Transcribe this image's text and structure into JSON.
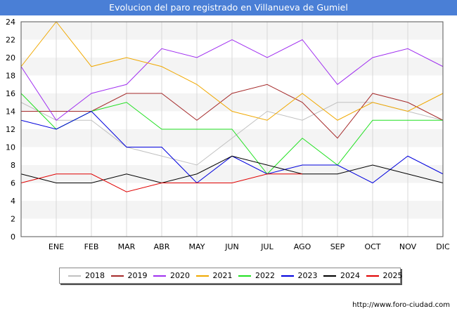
{
  "title": "Evolucion del paro registrado en Villanueva de Gumiel",
  "footer_url": "http://www.foro-ciudad.com",
  "chart_data": {
    "type": "line",
    "title": "Evolucion del paro registrado en Villanueva de Gumiel",
    "xlabel": "",
    "ylabel": "",
    "ylim": [
      0,
      24
    ],
    "yticks": [
      0,
      2,
      4,
      6,
      8,
      10,
      12,
      14,
      16,
      18,
      20,
      22,
      24
    ],
    "x_points": [
      "",
      "ENE",
      "FEB",
      "MAR",
      "ABR",
      "MAY",
      "JUN",
      "JUL",
      "AGO",
      "SEP",
      "OCT",
      "NOV",
      "DIC"
    ],
    "grid": "horizontal-bands-and-vertical-lines",
    "legend_position": "bottom",
    "series": [
      {
        "name": "2018",
        "color": "#c0c0c0",
        "values": [
          15,
          13,
          13,
          10,
          9,
          8,
          11,
          14,
          13,
          15,
          15,
          14,
          13
        ]
      },
      {
        "name": "2019",
        "color": "#a52a2a",
        "values": [
          14,
          14,
          14,
          16,
          16,
          13,
          16,
          17,
          15,
          11,
          16,
          15,
          13
        ]
      },
      {
        "name": "2020",
        "color": "#a030f0",
        "values": [
          19,
          13,
          16,
          17,
          21,
          20,
          22,
          20,
          22,
          17,
          20,
          21,
          19
        ]
      },
      {
        "name": "2021",
        "color": "#f0a800",
        "values": [
          19,
          24,
          19,
          20,
          19,
          17,
          14,
          13,
          16,
          13,
          15,
          14,
          16
        ]
      },
      {
        "name": "2022",
        "color": "#20e020",
        "values": [
          16,
          12,
          14,
          15,
          12,
          12,
          12,
          7,
          11,
          8,
          13,
          13,
          13
        ]
      },
      {
        "name": "2023",
        "color": "#0000dd",
        "values": [
          13,
          12,
          14,
          10,
          10,
          6,
          9,
          7,
          8,
          8,
          6,
          9,
          7
        ]
      },
      {
        "name": "2024",
        "color": "#000000",
        "values": [
          7,
          6,
          6,
          7,
          6,
          7,
          9,
          8,
          7,
          7,
          8,
          7,
          6
        ]
      },
      {
        "name": "2025",
        "color": "#e00000",
        "values": [
          6,
          7,
          7,
          5,
          6,
          6,
          6,
          7,
          7
        ]
      }
    ]
  }
}
